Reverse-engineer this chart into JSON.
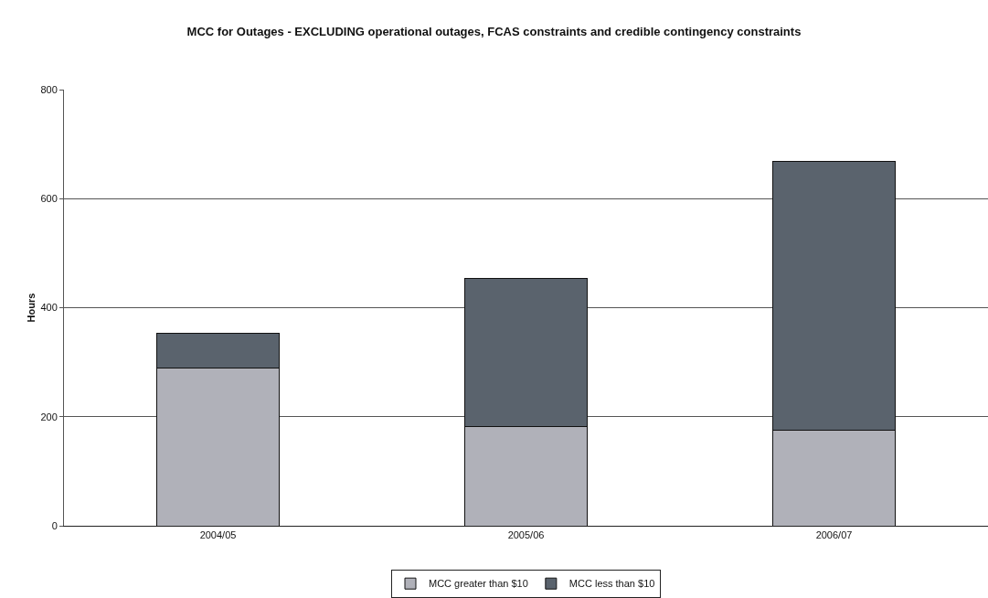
{
  "chart_data": {
    "type": "bar",
    "title": "MCC for Outages - EXCLUDING operational outages, FCAS constraints and credible contingency constraints",
    "ylabel": "Hours",
    "categories": [
      "2004/05",
      "2005/06",
      "2006/07"
    ],
    "series": [
      {
        "name": "MCC greater than $10",
        "color": "#b0b1b9",
        "values": [
          290,
          182,
          175
        ]
      },
      {
        "name": "MCC less than $10",
        "color": "#5a636d",
        "values": [
          63,
          272,
          493
        ]
      }
    ],
    "stacked": true,
    "ylim": [
      0,
      800
    ],
    "yticks": [
      0,
      200,
      400,
      600,
      800
    ],
    "grid": "y",
    "legend": "bottom"
  }
}
